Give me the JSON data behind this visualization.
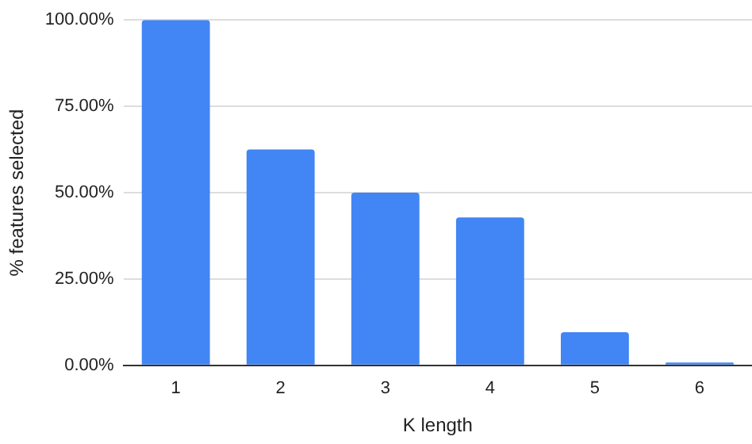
{
  "chart_data": {
    "type": "bar",
    "xlabel": "K length",
    "ylabel": "% features selected",
    "categories": [
      "1",
      "2",
      "3",
      "4",
      "5",
      "6"
    ],
    "values": [
      100,
      62.5,
      50,
      42.8,
      9.6,
      0.8
    ],
    "color": "#4285f4",
    "ylim": [
      0,
      100
    ],
    "yticks": [
      {
        "value": 0,
        "label": "0.00%"
      },
      {
        "value": 25,
        "label": "25.00%"
      },
      {
        "value": 50,
        "label": "50.00%"
      },
      {
        "value": 75,
        "label": "75.00%"
      },
      {
        "value": 100,
        "label": "100.00%"
      }
    ],
    "grid": "y"
  }
}
